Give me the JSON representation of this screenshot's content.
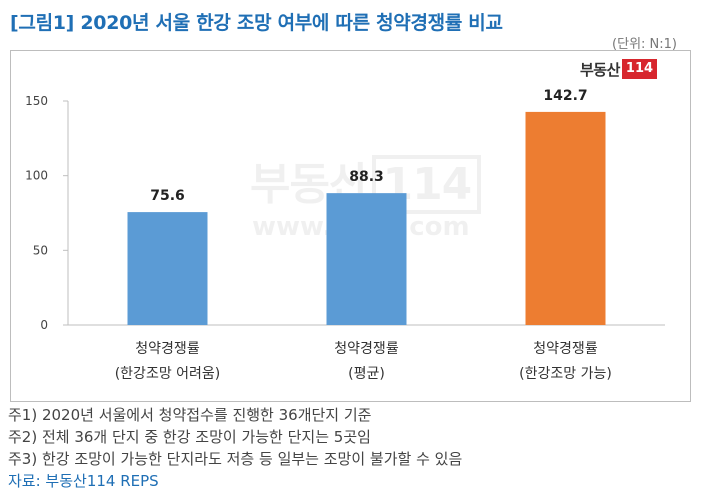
{
  "title": "[그림1] 2020년 서울 한강 조망 여부에 따른 청약경쟁률 비교",
  "unit": "(단위: N:1)",
  "brand": {
    "text": "부동산",
    "box": "114"
  },
  "watermark": {
    "main": "부동산",
    "box": "114",
    "url": "www.r114.com"
  },
  "chart_data": {
    "type": "bar",
    "categories": [
      {
        "line1": "청약경쟁률",
        "line2": "(한강조망 어려움)"
      },
      {
        "line1": "청약경쟁률",
        "line2": "(평균)"
      },
      {
        "line1": "청약경쟁률",
        "line2": "(한강조망 가능)"
      }
    ],
    "values": [
      75.6,
      88.3,
      142.7
    ],
    "value_labels": [
      "75.6",
      "88.3",
      "142.7"
    ],
    "colors": [
      "#5b9bd5",
      "#5b9bd5",
      "#ed7d31"
    ],
    "ylim": [
      0,
      150
    ],
    "yticks": [
      "0",
      "50",
      "100",
      "150"
    ],
    "grid": false,
    "legend": "none"
  },
  "notes": [
    "주1) 2020년 서울에서 청약접수를 진행한 36개단지 기준",
    "주2) 전체 36개 단지 중 한강 조망이 가능한 단지는 5곳임",
    "주3) 한강 조망이 가능한 단지라도 저층 등 일부는 조망이 불가할 수 있음"
  ],
  "source": "자료: 부동산114 REPS"
}
